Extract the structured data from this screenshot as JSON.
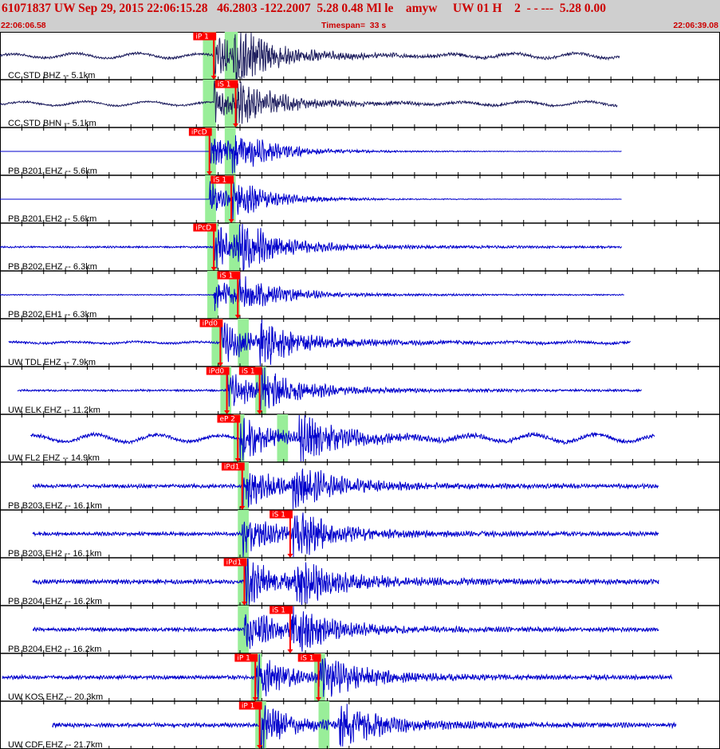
{
  "header": {
    "title": "61071837 UW Sep 29, 2015 22:06:15.28   46.2803 -122.2007  5.28 0.48 Ml le    amyw     UW 01 H    2  - - ---  5.28 0.00",
    "start_time": "22:06:06.58",
    "timespan": "Timespan=  33 s",
    "end_time": "22:06:39.08"
  },
  "colors": {
    "trace_dark": "#202060",
    "trace_blue": "#0000cc",
    "pick_fill": "#ff0000",
    "window_fill": "#99ee99",
    "header_bg": "#cfcfcf",
    "header_text": "#cc0000"
  },
  "chart_data": {
    "type": "line",
    "x_unit": "s",
    "x_range": [
      0,
      33
    ],
    "traces": [
      {
        "label": "CC STD BHZ -- 5.1km",
        "color": "dark",
        "data_start": 0,
        "data_end": 28.4,
        "windows": [
          [
            9.3,
            9.9
          ],
          [
            10.3,
            10.9
          ]
        ],
        "picks": [
          {
            "label": "iP 1",
            "time": 9.8
          }
        ],
        "event_times": [
          9.8,
          10.7
        ],
        "amp": 0.75,
        "noise": 0.05,
        "wave": 0.12,
        "seed": 1
      },
      {
        "label": "CC STD BHN -- 5.1km",
        "color": "dark",
        "data_start": 0,
        "data_end": 28.3,
        "windows": [
          [
            9.3,
            9.9
          ],
          [
            10.3,
            10.9
          ]
        ],
        "picks": [
          {
            "label": "iS 1",
            "time": 10.8
          }
        ],
        "event_times": [
          9.8,
          10.8
        ],
        "amp": 0.6,
        "noise": 0.05,
        "wave": 0.1,
        "seed": 2
      },
      {
        "label": "PB B201 EHZ -- 5.6km",
        "color": "blue",
        "data_start": 0,
        "data_end": 28.5,
        "windows": [
          [
            9.4,
            9.9
          ],
          [
            10.3,
            10.8
          ]
        ],
        "picks": [
          {
            "label": "iPcD",
            "time": 9.6
          }
        ],
        "event_times": [
          9.6,
          10.6
        ],
        "amp": 0.6,
        "noise": 0.0,
        "wave": 0.0,
        "seed": 3
      },
      {
        "label": "PB B201 EH2 -- 5.6km",
        "color": "blue",
        "data_start": 0,
        "data_end": 28.5,
        "windows": [
          [
            9.4,
            9.9
          ],
          [
            10.3,
            10.8
          ]
        ],
        "picks": [
          {
            "label": "iS 1",
            "time": 10.6
          }
        ],
        "event_times": [
          9.6,
          10.6
        ],
        "amp": 0.5,
        "noise": 0.0,
        "wave": 0.0,
        "seed": 4
      },
      {
        "label": "PB B202 EHZ -- 6.3km",
        "color": "blue",
        "data_start": 0,
        "data_end": 28.5,
        "windows": [
          [
            9.5,
            10.0
          ],
          [
            10.5,
            11.0
          ]
        ],
        "picks": [
          {
            "label": "iPcD",
            "time": 9.8
          }
        ],
        "event_times": [
          9.8,
          10.9
        ],
        "amp": 0.7,
        "noise": 0.04,
        "wave": 0.0,
        "seed": 5
      },
      {
        "label": "PB B202 EH1 -- 6.3km",
        "color": "blue",
        "data_start": 0,
        "data_end": 28.6,
        "windows": [
          [
            9.5,
            10.0
          ],
          [
            10.5,
            11.0
          ]
        ],
        "picks": [
          {
            "label": "iS 1",
            "time": 10.9
          }
        ],
        "event_times": [
          9.8,
          10.9
        ],
        "amp": 0.5,
        "noise": 0.03,
        "wave": 0.0,
        "seed": 6
      },
      {
        "label": "UW TDL EHZ -- 7.9km",
        "color": "blue",
        "data_start": 0.4,
        "data_end": 28.9,
        "windows": [
          [
            9.7,
            10.2
          ],
          [
            10.9,
            11.4
          ]
        ],
        "picks": [
          {
            "label": "iPd0",
            "time": 10.1
          }
        ],
        "event_times": [
          10.1,
          11.9
        ],
        "amp": 0.7,
        "noise": 0.05,
        "wave": 0.04,
        "seed": 7
      },
      {
        "label": "UW ELK EHZ -- 11.2km",
        "color": "blue",
        "data_start": 0.8,
        "data_end": 29.4,
        "windows": [
          [
            10.1,
            10.6
          ],
          [
            11.7,
            12.2
          ]
        ],
        "picks": [
          {
            "label": "iPd0",
            "time": 10.4
          },
          {
            "label": "iS 1",
            "time": 11.9
          }
        ],
        "event_times": [
          10.4,
          11.9
        ],
        "amp": 0.65,
        "noise": 0.05,
        "wave": 0.0,
        "seed": 8
      },
      {
        "label": "UW FL2 EHZ -- 14.9km",
        "color": "blue",
        "data_start": 1.4,
        "data_end": 30.0,
        "windows": [
          [
            10.7,
            11.2
          ],
          [
            12.7,
            13.2
          ]
        ],
        "picks": [
          {
            "label": "eP 2",
            "time": 10.9
          }
        ],
        "event_times": [
          11.0,
          13.7
        ],
        "amp": 0.75,
        "noise": 0.07,
        "wave": 0.18,
        "seed": 9
      },
      {
        "label": "PB B203 EHZ -- 16.1km",
        "color": "blue",
        "data_start": 1.5,
        "data_end": 30.2,
        "windows": [
          [
            10.9,
            11.4
          ]
        ],
        "picks": [
          {
            "label": "iPd1",
            "time": 11.1
          }
        ],
        "event_times": [
          11.1,
          13.4
        ],
        "amp": 0.75,
        "noise": 0.08,
        "wave": 0.0,
        "seed": 10
      },
      {
        "label": "PB B203 EH2 -- 16.1km",
        "color": "blue",
        "data_start": 1.5,
        "data_end": 30.2,
        "windows": [
          [
            10.9,
            11.4
          ]
        ],
        "picks": [
          {
            "label": "iS 1",
            "time": 13.3
          }
        ],
        "event_times": [
          11.1,
          13.4
        ],
        "amp": 0.75,
        "noise": 0.08,
        "wave": 0.0,
        "seed": 11
      },
      {
        "label": "PB B204 EHZ -- 16.2km",
        "color": "blue",
        "data_start": 1.5,
        "data_end": 30.2,
        "windows": [
          [
            10.9,
            11.4
          ]
        ],
        "picks": [
          {
            "label": "iPd1",
            "time": 11.2
          }
        ],
        "event_times": [
          11.2,
          13.5
        ],
        "amp": 0.8,
        "noise": 0.09,
        "wave": 0.0,
        "seed": 12
      },
      {
        "label": "PB B204 EH2 -- 16.2km",
        "color": "blue",
        "data_start": 1.5,
        "data_end": 30.2,
        "windows": [
          [
            10.9,
            11.4
          ]
        ],
        "picks": [
          {
            "label": "iS 1",
            "time": 13.3
          }
        ],
        "event_times": [
          11.2,
          13.3
        ],
        "amp": 0.75,
        "noise": 0.08,
        "wave": 0.0,
        "seed": 13
      },
      {
        "label": "UW KOS EHZ -- 20.3km",
        "color": "blue",
        "data_start": 0.1,
        "data_end": 30.8,
        "windows": [
          [
            11.5,
            12.0
          ],
          [
            14.4,
            14.9
          ]
        ],
        "picks": [
          {
            "label": "iP 1",
            "time": 11.7
          },
          {
            "label": "iS 1",
            "time": 14.6
          }
        ],
        "event_times": [
          11.7,
          14.6
        ],
        "amp": 0.75,
        "noise": 0.08,
        "wave": 0.0,
        "seed": 14
      },
      {
        "label": "UW CDF EHZ -- 21.7km",
        "color": "blue",
        "data_start": 2.4,
        "data_end": 31.0,
        "windows": [
          [
            11.7,
            12.2
          ],
          [
            14.6,
            15.1
          ]
        ],
        "picks": [
          {
            "label": "iP 1",
            "time": 11.9
          }
        ],
        "event_times": [
          11.9,
          15.5
        ],
        "amp": 0.75,
        "noise": 0.09,
        "wave": 0.0,
        "seed": 15
      }
    ]
  }
}
